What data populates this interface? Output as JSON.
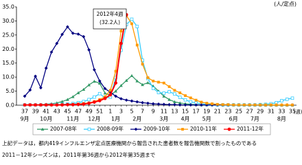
{
  "chart_data": {
    "type": "line",
    "y_label": "(人/定点)",
    "x_label": "(週)",
    "categories": [
      "37",
      null,
      "39",
      null,
      "41",
      null,
      "43",
      null,
      "45",
      null,
      "47",
      null,
      "49",
      null,
      "51",
      null,
      "1",
      null,
      "3",
      null,
      "5",
      null,
      "7",
      null,
      "9",
      null,
      "11",
      null,
      "13",
      null,
      "15",
      null,
      "17",
      null,
      "19",
      null,
      "21",
      null,
      "23",
      null,
      "25",
      null,
      "27",
      null,
      "29",
      null,
      "31",
      null,
      "33",
      null,
      "35"
    ],
    "month_labels": [
      "9月",
      null,
      null,
      null,
      "10月",
      null,
      null,
      null,
      null,
      "11月",
      null,
      null,
      null,
      "12月",
      null,
      null,
      null,
      "1月",
      null,
      null,
      null,
      "2月",
      null,
      null,
      null,
      null,
      "3月",
      null,
      null,
      null,
      "4月",
      null,
      null,
      null,
      "5月",
      null,
      null,
      null,
      null,
      "6月",
      null,
      null,
      null,
      "7月",
      null,
      null,
      null,
      null,
      "8月",
      null,
      null
    ],
    "ylim": [
      0,
      35
    ],
    "yticks": [
      {
        "value": 0,
        "label": "0.0"
      },
      {
        "value": 5,
        "label": "5.0"
      },
      {
        "value": 10,
        "label": "10.0"
      },
      {
        "value": 15,
        "label": "15.0"
      },
      {
        "value": 20,
        "label": "20.0"
      },
      {
        "value": 25,
        "label": "25.0"
      },
      {
        "value": 30,
        "label": "30.0"
      },
      {
        "value": 35,
        "label": "35.0"
      }
    ],
    "grid": false,
    "series": [
      {
        "name": "2007-08年",
        "color": "#339966",
        "marker": "triangle",
        "values": [
          0.1,
          0.1,
          0.1,
          0.2,
          0.3,
          0.5,
          0.8,
          1.3,
          2.0,
          3.0,
          4.4,
          5.6,
          7.2,
          8.5,
          7.8,
          4.3,
          3.5,
          5.0,
          7.0,
          8.8,
          10.5,
          8.6,
          7.3,
          8.0,
          6.8,
          5.0,
          3.2,
          2.0,
          1.2,
          0.8,
          0.5,
          0.3,
          0.2,
          0.1,
          0.1,
          0.1,
          0.1,
          0.1,
          0.1,
          0.1,
          0.0,
          0.0,
          0.0,
          0.0,
          0.0,
          0.0,
          0.0,
          0.0,
          0.0,
          0.0,
          0.0
        ]
      },
      {
        "name": "2008-09年",
        "color": "#33ccff",
        "marker": "square-open",
        "values": [
          0.1,
          0.1,
          0.1,
          0.1,
          0.1,
          0.2,
          0.2,
          0.3,
          0.4,
          0.6,
          0.9,
          1.3,
          2.0,
          2.9,
          4.1,
          2.6,
          2.9,
          9.8,
          19.6,
          28.7,
          30.6,
          28.0,
          16.0,
          9.5,
          6.0,
          4.5,
          4.3,
          4.8,
          4.0,
          2.8,
          1.9,
          1.2,
          0.8,
          0.5,
          0.3,
          0.2,
          0.1,
          0.1,
          0.1,
          0.1,
          0.1,
          0.1,
          0.1,
          0.1,
          0.2,
          0.3,
          0.5,
          0.9,
          1.6,
          2.1,
          2.5
        ]
      },
      {
        "name": "2009-10年",
        "color": "#000080",
        "marker": "diamond",
        "values": [
          3.2,
          5.4,
          10.3,
          6.2,
          13.2,
          18.9,
          22.0,
          25.2,
          27.9,
          25.6,
          25.3,
          24.4,
          19.7,
          12.6,
          8.6,
          5.9,
          4.6,
          3.2,
          2.3,
          1.8,
          1.5,
          1.2,
          0.9,
          0.7,
          0.5,
          0.4,
          0.3,
          0.2,
          0.2,
          0.1,
          0.1,
          0.1,
          0.1,
          0.1,
          0.1,
          0.1,
          0.1,
          0.1,
          0.1,
          0.1,
          0.1,
          0.1,
          0.1,
          0.1,
          0.1,
          0.1,
          0.1,
          0.1,
          0.1,
          0.1,
          0.1
        ]
      },
      {
        "name": "2010-11年",
        "color": "#ff9900",
        "marker": "square",
        "values": [
          0.1,
          0.1,
          0.1,
          0.1,
          0.1,
          0.1,
          0.1,
          0.2,
          0.2,
          0.3,
          0.4,
          0.6,
          0.8,
          1.3,
          2.0,
          3.0,
          5.3,
          12.1,
          26.4,
          31.9,
          29.0,
          21.4,
          14.6,
          9.8,
          8.6,
          8.2,
          7.9,
          6.6,
          5.3,
          4.4,
          3.4,
          2.6,
          1.8,
          1.1,
          0.7,
          0.5,
          0.3,
          0.2,
          0.2,
          0.1,
          0.1,
          0.1,
          0.1,
          0.1,
          0.1,
          0.1,
          0.1,
          0.1,
          0.1,
          0.1,
          0.1
        ]
      },
      {
        "name": "2011-12年",
        "color": "#ff0000",
        "marker": "circle",
        "values": [
          0.1,
          0.1,
          0.1,
          0.1,
          0.1,
          0.1,
          0.1,
          0.1,
          0.2,
          0.2,
          0.3,
          0.4,
          0.7,
          1.1,
          1.6,
          2.4,
          3.7,
          7.9,
          22.0,
          32.2,
          null,
          null,
          null,
          null,
          null,
          null,
          null,
          null,
          null,
          null,
          null,
          null,
          null,
          null,
          null,
          null,
          null,
          null,
          null,
          null,
          null,
          null,
          null,
          null,
          null,
          null,
          null,
          null,
          null,
          null,
          null
        ]
      }
    ],
    "annotation": [
      "2012年4週",
      "(32.2人)"
    ],
    "footnotes": [
      "上記データは，都内419インフルエンザ定点医療機関から報告された患者数を報告機関数で割ったものである",
      "2011－12年シーズンは，2011年第36週から2012年第35週まで"
    ]
  }
}
